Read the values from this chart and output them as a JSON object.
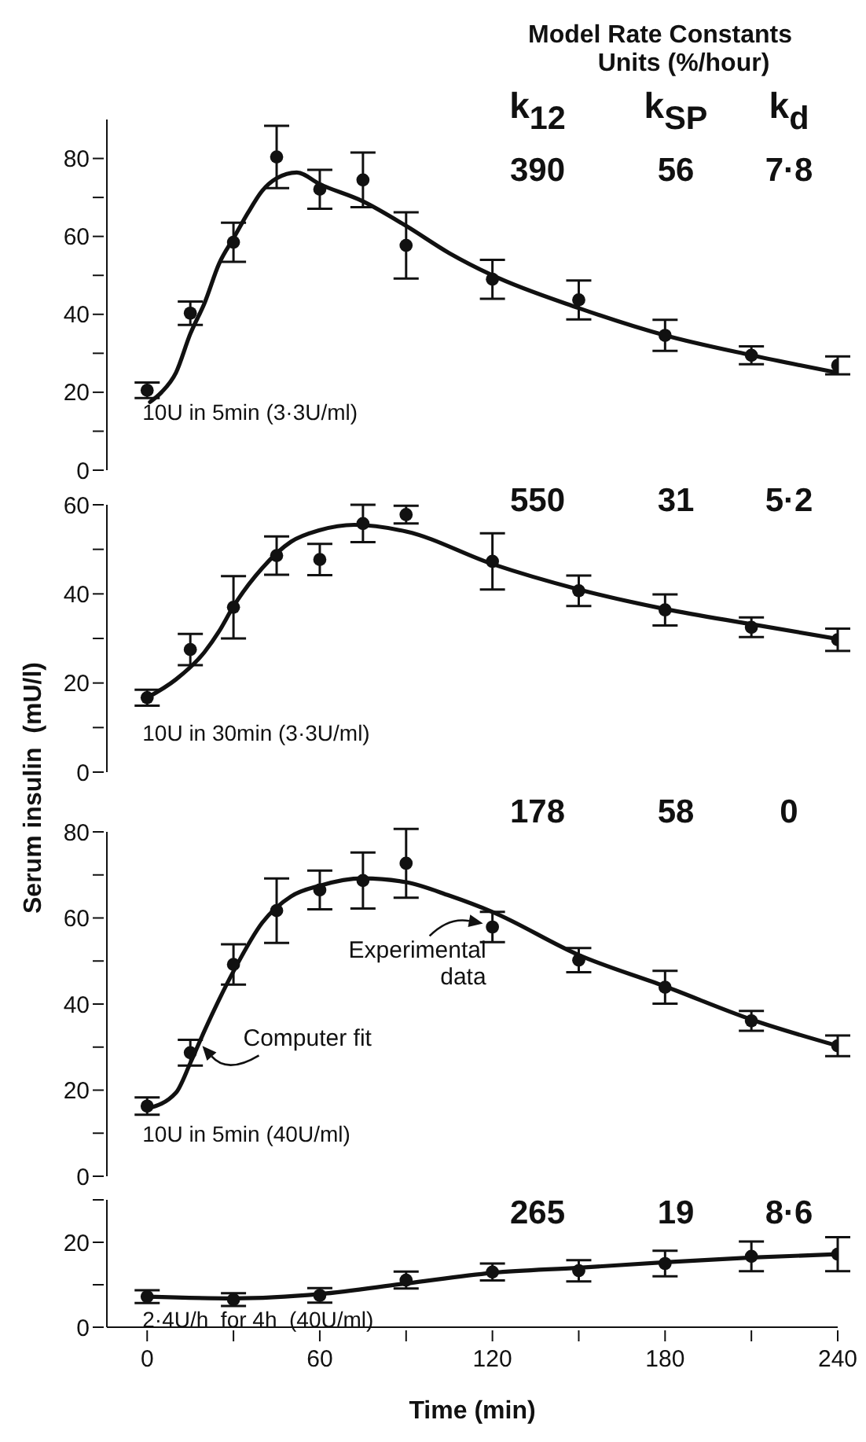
{
  "chart_data": [
    {
      "type": "scatter",
      "title": "Model Rate Constants",
      "subtitle": "Units (%/hour)",
      "tick_labels": "y",
      "xlim": [
        -14,
        240
      ],
      "ylim": [
        0,
        90
      ],
      "yticks": [
        0,
        {
          "value": 10,
          "label": null
        },
        20,
        {
          "value": 30,
          "label": null
        },
        40,
        {
          "value": 50,
          "label": null
        },
        60,
        {
          "value": 70,
          "label": null
        },
        80
      ],
      "annotations": [
        "k$_{12}$",
        "k$_{SP}$",
        "k$_{d}$",
        "390",
        "56",
        "7·8",
        "10U in 5min (3·3U/ml)"
      ],
      "x": [
        0,
        15,
        30,
        45,
        60,
        75,
        90,
        120,
        150,
        180,
        210,
        240
      ],
      "series": [
        {
          "marker": "circle",
          "color": "#111111",
          "values": [
            20.5,
            40.3,
            58.5,
            80.4,
            72.1,
            74.5,
            57.7,
            49,
            43.7,
            34.6,
            29.5,
            26.9
          ],
          "errors": [
            2,
            3,
            5,
            8,
            5,
            7,
            8.5,
            5,
            5,
            4,
            2.3,
            2.3
          ]
        },
        {
          "type": "line",
          "color": "#111111",
          "x": [
            1,
            5,
            10,
            15,
            20,
            25,
            30,
            35,
            40,
            45,
            52,
            60,
            75,
            90,
            105,
            120,
            150,
            180,
            210,
            240
          ],
          "values": [
            17.5,
            20,
            25,
            35,
            43,
            53,
            59.5,
            66,
            71.7,
            74.9,
            76.4,
            73.4,
            69,
            62.7,
            55.7,
            50,
            41.6,
            34.6,
            29.5,
            25
          ]
        }
      ]
    },
    {
      "type": "scatter",
      "ylabel": "Serum insulin  (mU/l)",
      "tick_labels": "y",
      "xlim": [
        -14,
        240
      ],
      "ylim": [
        0,
        60
      ],
      "yticks": [
        0,
        {
          "value": 10,
          "label": null
        },
        20,
        {
          "value": 30,
          "label": null
        },
        40,
        {
          "value": 50,
          "label": null
        },
        60
      ],
      "annotations": [
        "550",
        "31",
        "5·2",
        "10U in 30min (3·3U/ml)"
      ],
      "x": [
        0,
        15,
        30,
        45,
        60,
        75,
        90,
        120,
        150,
        180,
        210,
        240
      ],
      "series": [
        {
          "marker": "circle",
          "color": "#111111",
          "values": [
            16.7,
            27.5,
            37,
            48.6,
            47.7,
            55.8,
            57.8,
            47.3,
            40.7,
            36.4,
            32.5,
            29.7
          ],
          "errors": [
            1.8,
            3.5,
            7,
            4.3,
            3.5,
            4.2,
            2,
            6.3,
            3.4,
            3.5,
            2.2,
            2.5
          ]
        },
        {
          "type": "line",
          "color": "#111111",
          "x": [
            0,
            10,
            20,
            25,
            30,
            40,
            50,
            60,
            72,
            90,
            120,
            150,
            180,
            210,
            240
          ],
          "values": [
            16.7,
            20.8,
            27,
            31.6,
            37.2,
            45.8,
            51.7,
            54.3,
            55.5,
            54,
            46.7,
            41,
            36.6,
            33.2,
            29.9
          ]
        }
      ]
    },
    {
      "type": "scatter",
      "tick_labels": "y",
      "xlim": [
        -14,
        240
      ],
      "ylim": [
        0,
        80
      ],
      "yticks": [
        0,
        {
          "value": 10,
          "label": null
        },
        20,
        {
          "value": 30,
          "label": null
        },
        40,
        {
          "value": 50,
          "label": null
        },
        60,
        {
          "value": 70,
          "label": null
        },
        80
      ],
      "annotations": [
        "178",
        "58",
        "0",
        "10U in 5min (40U/ml)",
        {
          "text": "Computer fit",
          "x": 17,
          "y": 31
        },
        {
          "text": "Experimental data",
          "x": 120,
          "y": 58
        }
      ],
      "x": [
        0,
        15,
        30,
        45,
        60,
        75,
        90,
        120,
        150,
        180,
        210,
        240
      ],
      "series": [
        {
          "marker": "circle",
          "color": "#111111",
          "values": [
            16.3,
            28.7,
            49.2,
            61.7,
            66.5,
            68.7,
            72.7,
            57.9,
            50.2,
            43.9,
            36.1,
            30.3
          ],
          "errors": [
            2,
            3,
            4.7,
            7.5,
            4.5,
            6.5,
            8,
            3.5,
            2.8,
            3.8,
            2.3,
            2.4
          ]
        },
        {
          "type": "line",
          "color": "#111111",
          "x": [
            0,
            10,
            15,
            20,
            30,
            40,
            50,
            60,
            75,
            90,
            105,
            120,
            150,
            180,
            210,
            240
          ],
          "values": [
            15.7,
            19.4,
            26.3,
            33.9,
            47.6,
            58.9,
            65,
            67.5,
            69.2,
            68.3,
            65.2,
            61.4,
            51.4,
            44.1,
            36.4,
            30.3
          ]
        }
      ]
    },
    {
      "type": "scatter",
      "xlabel": "Time  (min)",
      "xlim": [
        -14,
        240
      ],
      "xticks": [
        0,
        {
          "value": 30,
          "label": null
        },
        60,
        {
          "value": 90,
          "label": null
        },
        120,
        {
          "value": 150,
          "label": null
        },
        180,
        {
          "value": 210,
          "label": null
        },
        240
      ],
      "ylim": [
        0,
        30
      ],
      "yticks": [
        0,
        {
          "value": 10,
          "label": null
        },
        20,
        {
          "value": 30,
          "label": null
        }
      ],
      "annotations": [
        "265",
        "19",
        "8·6",
        "2·4U/h  for 4h  (40U/ml)"
      ],
      "x": [
        0,
        30,
        60,
        90,
        120,
        150,
        180,
        210,
        240
      ],
      "series": [
        {
          "marker": "circle",
          "color": "#111111",
          "values": [
            7.2,
            6.5,
            7.5,
            11.1,
            13,
            13.3,
            15,
            16.7,
            17.2
          ],
          "errors": [
            1.5,
            1.5,
            1.7,
            2,
            2,
            2.5,
            3,
            3.5,
            4
          ]
        },
        {
          "type": "line",
          "color": "#111111",
          "x": [
            0,
            30,
            60,
            90,
            120,
            150,
            180,
            210,
            240
          ],
          "values": [
            7.2,
            6.8,
            7.8,
            10.3,
            12.8,
            14,
            15.3,
            16.4,
            17.2
          ]
        }
      ]
    }
  ]
}
